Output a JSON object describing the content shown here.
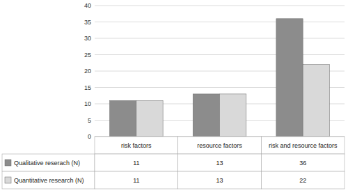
{
  "chart_data": {
    "type": "bar",
    "categories": [
      "risk factors",
      "resource factors",
      "risk and resource factors"
    ],
    "series": [
      {
        "name": "Qualitative reserach (N)",
        "color": "#8c8c8c",
        "values": [
          11,
          13,
          36
        ]
      },
      {
        "name": "Quantitative research (N)",
        "color": "#d9d9d9",
        "values": [
          11,
          13,
          22
        ]
      }
    ],
    "ylim": [
      0,
      40
    ],
    "yticks": [
      0,
      5,
      10,
      15,
      20,
      25,
      30,
      35,
      40
    ],
    "grid": true,
    "tick_labels": "y"
  }
}
